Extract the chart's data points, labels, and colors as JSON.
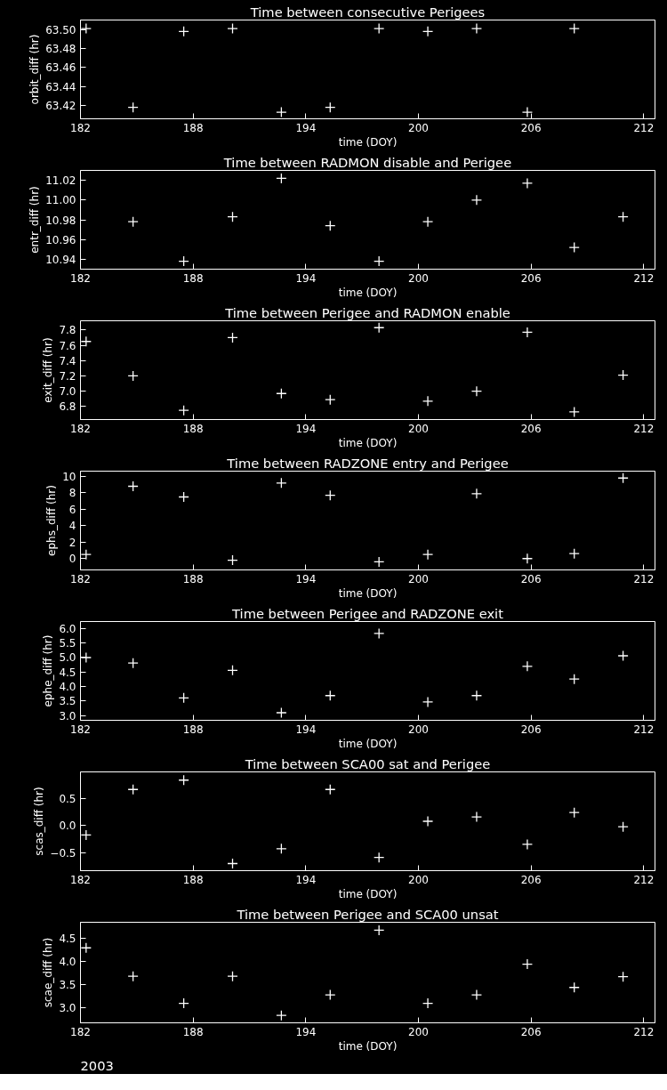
{
  "chart_data": [
    {
      "type": "scatter",
      "title": "Time between consecutive Perigees",
      "xlabel": "time (DOY)",
      "ylabel": "orbit_diff (hr)",
      "marker": "cross",
      "xlim": [
        182,
        212.6
      ],
      "xticks": [
        182,
        188,
        194,
        200,
        206,
        212
      ],
      "ylim": [
        63.406,
        63.51
      ],
      "yticks": [
        {
          "value": 63.42,
          "label": "63.42"
        },
        {
          "value": 63.44,
          "label": "63.44"
        },
        {
          "value": 63.46,
          "label": "63.46"
        },
        {
          "value": 63.48,
          "label": "63.48"
        },
        {
          "value": 63.5,
          "label": "63.50"
        }
      ],
      "series": [
        {
          "color": "#ffffff",
          "x": [
            182.3,
            184.8,
            187.5,
            190.1,
            192.7,
            195.3,
            197.9,
            200.5,
            203.1,
            205.8,
            208.3
          ],
          "values": [
            63.501,
            63.418,
            63.498,
            63.501,
            63.413,
            63.418,
            63.501,
            63.498,
            63.501,
            63.413,
            63.501
          ]
        }
      ]
    },
    {
      "type": "scatter",
      "title": "Time between RADMON disable and Perigee",
      "xlabel": "time (DOY)",
      "ylabel": "entr_diff (hr)",
      "marker": "cross",
      "xlim": [
        182,
        212.6
      ],
      "xticks": [
        182,
        188,
        194,
        200,
        206,
        212
      ],
      "ylim": [
        10.93,
        11.03
      ],
      "yticks": [
        10.94,
        10.96,
        10.98,
        {
          "value": 11.0,
          "label": "11.00"
        },
        11.02
      ],
      "series": [
        {
          "color": "#ffffff",
          "x": [
            184.8,
            187.5,
            190.1,
            192.7,
            195.3,
            197.9,
            200.5,
            203.1,
            205.8,
            208.3,
            210.9
          ],
          "values": [
            10.978,
            10.938,
            10.983,
            11.022,
            10.974,
            10.938,
            10.978,
            11.0,
            11.017,
            10.952,
            10.983
          ]
        }
      ]
    },
    {
      "type": "scatter",
      "title": "Time between Perigee and RADMON enable",
      "xlabel": "time (DOY)",
      "ylabel": "exit_diff (hr)",
      "marker": "cross",
      "xlim": [
        182,
        212.6
      ],
      "xticks": [
        182,
        188,
        194,
        200,
        206,
        212
      ],
      "ylim": [
        6.63,
        7.92
      ],
      "yticks": [
        6.8,
        {
          "value": 7.0,
          "label": "7.0"
        },
        7.2,
        7.4,
        7.6,
        7.8
      ],
      "series": [
        {
          "color": "#ffffff",
          "x": [
            182.3,
            184.8,
            187.5,
            190.1,
            192.7,
            195.3,
            197.9,
            200.5,
            203.1,
            205.8,
            208.3,
            210.9
          ],
          "values": [
            7.65,
            7.2,
            6.75,
            7.7,
            6.97,
            6.89,
            7.83,
            6.87,
            7.0,
            7.77,
            6.73,
            7.21
          ]
        }
      ]
    },
    {
      "type": "scatter",
      "title": "Time between RADZONE entry and Perigee",
      "xlabel": "time (DOY)",
      "ylabel": "ephs_diff (hr)",
      "marker": "cross",
      "xlim": [
        182,
        212.6
      ],
      "xticks": [
        182,
        188,
        194,
        200,
        206,
        212
      ],
      "ylim": [
        -1.38,
        10.64
      ],
      "yticks": [
        0,
        2,
        4,
        6,
        8,
        10
      ],
      "series": [
        {
          "color": "#ffffff",
          "x": [
            182.3,
            184.8,
            187.5,
            190.1,
            192.7,
            195.3,
            197.9,
            200.5,
            203.1,
            205.8,
            208.3,
            210.9
          ],
          "values": [
            0.5,
            8.8,
            7.5,
            -0.2,
            9.2,
            7.7,
            -0.4,
            0.5,
            7.9,
            0.0,
            0.6,
            9.8
          ]
        }
      ]
    },
    {
      "type": "scatter",
      "title": "Time between Perigee and RADZONE exit",
      "xlabel": "time (DOY)",
      "ylabel": "ephe_diff (hr)",
      "marker": "cross",
      "xlim": [
        182,
        212.6
      ],
      "xticks": [
        182,
        188,
        194,
        200,
        206,
        212
      ],
      "ylim": [
        2.84,
        6.24
      ],
      "yticks": [
        {
          "value": 3.0,
          "label": "3.0"
        },
        3.5,
        {
          "value": 4.0,
          "label": "4.0"
        },
        4.5,
        {
          "value": 5.0,
          "label": "5.0"
        },
        5.5,
        {
          "value": 6.0,
          "label": "6.0"
        }
      ],
      "series": [
        {
          "color": "#ffffff",
          "x": [
            182.3,
            184.8,
            187.5,
            190.1,
            192.7,
            195.3,
            197.9,
            200.5,
            203.1,
            205.8,
            208.3,
            210.9
          ],
          "values": [
            5.0,
            4.81,
            3.61,
            4.56,
            3.1,
            3.69,
            5.83,
            3.47,
            3.69,
            4.7,
            4.26,
            5.06
          ]
        }
      ]
    },
    {
      "type": "scatter",
      "title": "Time between SCA00 sat and Perigee",
      "xlabel": "time (DOY)",
      "ylabel": "scas_diff (hr)",
      "marker": "cross",
      "xlim": [
        182,
        212.6
      ],
      "xticks": [
        182,
        188,
        194,
        200,
        206,
        212
      ],
      "ylim": [
        -0.82,
        0.98
      ],
      "yticks": [
        {
          "value": -0.5,
          "label": "−0.5"
        },
        {
          "value": 0.0,
          "label": "0.0"
        },
        0.5
      ],
      "series": [
        {
          "color": "#ffffff",
          "x": [
            182.3,
            184.8,
            187.5,
            190.1,
            192.7,
            195.3,
            197.9,
            200.5,
            203.1,
            205.8,
            208.3,
            210.9
          ],
          "values": [
            -0.17,
            0.66,
            0.83,
            -0.69,
            -0.42,
            0.66,
            -0.58,
            0.08,
            0.16,
            -0.34,
            0.24,
            -0.02
          ]
        }
      ]
    },
    {
      "type": "scatter",
      "title": "Time between Perigee and SCA00 unsat",
      "xlabel": "time (DOY)",
      "ylabel": "scae_diff (hr)",
      "marker": "cross",
      "xlim": [
        182,
        212.6
      ],
      "xticks": [
        182,
        188,
        194,
        200,
        206,
        212
      ],
      "ylim": [
        2.68,
        4.84
      ],
      "yticks": [
        {
          "value": 3.0,
          "label": "3.0"
        },
        3.5,
        {
          "value": 4.0,
          "label": "4.0"
        },
        4.5
      ],
      "annotations": [
        "2003"
      ],
      "series": [
        {
          "color": "#ffffff",
          "x": [
            182.3,
            184.8,
            187.5,
            190.1,
            192.7,
            195.3,
            197.9,
            200.5,
            203.1,
            205.8,
            208.3,
            210.9
          ],
          "values": [
            4.29,
            3.68,
            3.1,
            3.68,
            2.84,
            3.28,
            4.67,
            3.1,
            3.28,
            3.94,
            3.44,
            3.67
          ]
        }
      ]
    }
  ]
}
